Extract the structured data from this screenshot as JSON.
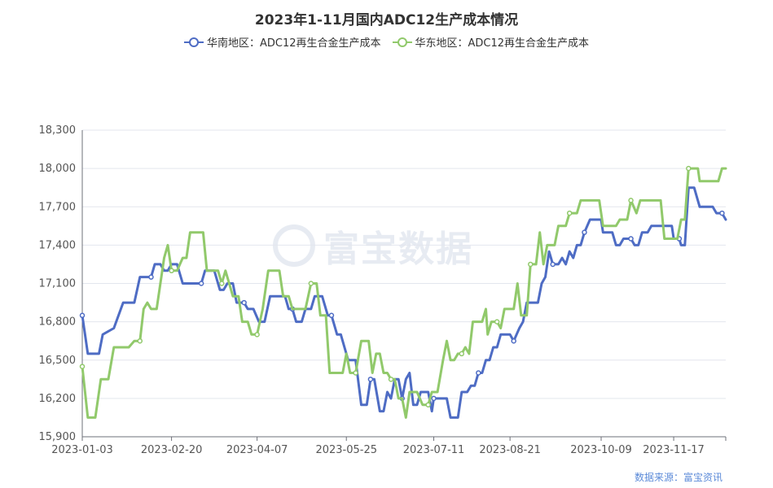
{
  "chart_data": {
    "type": "line",
    "title": "2023年1-11月国内ADC12生产成本情况",
    "x_tick_labels": [
      "2023-01-03",
      "2023-02-20",
      "2023-04-07",
      "2023-05-25",
      "2023-07-11",
      "2023-08-21",
      "2023-10-09",
      "2023-11-17"
    ],
    "ylim": [
      15900,
      18300
    ],
    "y_ticks": [
      15900,
      16200,
      16500,
      16800,
      17100,
      17400,
      17700,
      18000,
      18300
    ],
    "y_tick_labels": [
      "15,900",
      "16,200",
      "16,500",
      "16,800",
      "17,100",
      "17,400",
      "17,700",
      "18,000",
      "18,300"
    ],
    "grid": true,
    "legend_position": "top-center",
    "series": [
      {
        "name": "华南地区：ADC12再生合金生产成本",
        "color": "#4e6cc4",
        "points": [
          [
            "2023-01-03",
            16850
          ],
          [
            "2023-01-06",
            16550
          ],
          [
            "2023-01-12",
            16550
          ],
          [
            "2023-01-14",
            16700
          ],
          [
            "2023-01-20",
            16750
          ],
          [
            "2023-01-25",
            16950
          ],
          [
            "2023-01-31",
            16950
          ],
          [
            "2023-02-03",
            17150
          ],
          [
            "2023-02-09",
            17150
          ],
          [
            "2023-02-11",
            17250
          ],
          [
            "2023-02-14",
            17250
          ],
          [
            "2023-02-16",
            17200
          ],
          [
            "2023-02-18",
            17200
          ],
          [
            "2023-02-20",
            17250
          ],
          [
            "2023-02-23",
            17250
          ],
          [
            "2023-02-26",
            17100
          ],
          [
            "2023-03-08",
            17100
          ],
          [
            "2023-03-10",
            17200
          ],
          [
            "2023-03-15",
            17200
          ],
          [
            "2023-03-18",
            17050
          ],
          [
            "2023-03-20",
            17050
          ],
          [
            "2023-03-22",
            17100
          ],
          [
            "2023-03-25",
            17100
          ],
          [
            "2023-03-27",
            16950
          ],
          [
            "2023-03-31",
            16950
          ],
          [
            "2023-04-02",
            16900
          ],
          [
            "2023-04-05",
            16900
          ],
          [
            "2023-04-08",
            16800
          ],
          [
            "2023-04-11",
            16800
          ],
          [
            "2023-04-14",
            17000
          ],
          [
            "2023-04-22",
            17000
          ],
          [
            "2023-04-24",
            16900
          ],
          [
            "2023-04-26",
            16900
          ],
          [
            "2023-04-28",
            16800
          ],
          [
            "2023-05-01",
            16800
          ],
          [
            "2023-05-03",
            16900
          ],
          [
            "2023-05-06",
            16900
          ],
          [
            "2023-05-08",
            17000
          ],
          [
            "2023-05-12",
            17000
          ],
          [
            "2023-05-15",
            16850
          ],
          [
            "2023-05-17",
            16850
          ],
          [
            "2023-05-20",
            16700
          ],
          [
            "2023-05-22",
            16700
          ],
          [
            "2023-05-24",
            16600
          ],
          [
            "2023-05-26",
            16500
          ],
          [
            "2023-05-30",
            16500
          ],
          [
            "2023-06-02",
            16150
          ],
          [
            "2023-06-05",
            16150
          ],
          [
            "2023-06-07",
            16350
          ],
          [
            "2023-06-09",
            16350
          ],
          [
            "2023-06-12",
            16100
          ],
          [
            "2023-06-14",
            16100
          ],
          [
            "2023-06-16",
            16250
          ],
          [
            "2023-06-18",
            16200
          ],
          [
            "2023-06-20",
            16350
          ],
          [
            "2023-06-22",
            16350
          ],
          [
            "2023-06-24",
            16200
          ],
          [
            "2023-06-26",
            16350
          ],
          [
            "2023-06-28",
            16400
          ],
          [
            "2023-06-30",
            16150
          ],
          [
            "2023-07-02",
            16150
          ],
          [
            "2023-07-04",
            16250
          ],
          [
            "2023-07-08",
            16250
          ],
          [
            "2023-07-10",
            16100
          ],
          [
            "2023-07-11",
            16200
          ],
          [
            "2023-07-18",
            16200
          ],
          [
            "2023-07-20",
            16050
          ],
          [
            "2023-07-24",
            16050
          ],
          [
            "2023-07-26",
            16250
          ],
          [
            "2023-07-29",
            16250
          ],
          [
            "2023-07-31",
            16300
          ],
          [
            "2023-08-02",
            16300
          ],
          [
            "2023-08-04",
            16400
          ],
          [
            "2023-08-06",
            16400
          ],
          [
            "2023-08-08",
            16500
          ],
          [
            "2023-08-10",
            16500
          ],
          [
            "2023-08-12",
            16600
          ],
          [
            "2023-08-14",
            16600
          ],
          [
            "2023-08-16",
            16700
          ],
          [
            "2023-08-21",
            16700
          ],
          [
            "2023-08-23",
            16650
          ],
          [
            "2023-08-26",
            16750
          ],
          [
            "2023-08-28",
            16800
          ],
          [
            "2023-08-30",
            16950
          ],
          [
            "2023-09-05",
            16950
          ],
          [
            "2023-09-07",
            17100
          ],
          [
            "2023-09-09",
            17150
          ],
          [
            "2023-09-11",
            17350
          ],
          [
            "2023-09-13",
            17250
          ],
          [
            "2023-09-16",
            17250
          ],
          [
            "2023-09-18",
            17300
          ],
          [
            "2023-09-20",
            17250
          ],
          [
            "2023-09-22",
            17350
          ],
          [
            "2023-09-24",
            17300
          ],
          [
            "2023-09-26",
            17400
          ],
          [
            "2023-09-28",
            17400
          ],
          [
            "2023-09-30",
            17500
          ],
          [
            "2023-10-03",
            17600
          ],
          [
            "2023-10-09",
            17600
          ],
          [
            "2023-10-10",
            17500
          ],
          [
            "2023-10-15",
            17500
          ],
          [
            "2023-10-17",
            17400
          ],
          [
            "2023-10-19",
            17400
          ],
          [
            "2023-10-21",
            17450
          ],
          [
            "2023-10-25",
            17450
          ],
          [
            "2023-10-27",
            17400
          ],
          [
            "2023-10-29",
            17400
          ],
          [
            "2023-10-31",
            17500
          ],
          [
            "2023-11-03",
            17500
          ],
          [
            "2023-11-05",
            17550
          ],
          [
            "2023-11-16",
            17550
          ],
          [
            "2023-11-17",
            17450
          ],
          [
            "2023-11-20",
            17450
          ],
          [
            "2023-11-21",
            17400
          ],
          [
            "2023-11-23",
            17400
          ],
          [
            "2023-11-25",
            17850
          ],
          [
            "2023-11-28",
            17850
          ],
          [
            "2023-12-01",
            17700
          ],
          [
            "2023-12-08",
            17700
          ],
          [
            "2023-12-10",
            17650
          ],
          [
            "2023-12-13",
            17650
          ],
          [
            "2023-12-15",
            17600
          ]
        ]
      },
      {
        "name": "华东地区：ADC12再生合金生产成本",
        "color": "#91c96b",
        "points": [
          [
            "2023-01-03",
            16450
          ],
          [
            "2023-01-06",
            16050
          ],
          [
            "2023-01-10",
            16050
          ],
          [
            "2023-01-13",
            16350
          ],
          [
            "2023-01-17",
            16350
          ],
          [
            "2023-01-20",
            16600
          ],
          [
            "2023-01-28",
            16600
          ],
          [
            "2023-01-31",
            16650
          ],
          [
            "2023-02-03",
            16650
          ],
          [
            "2023-02-05",
            16900
          ],
          [
            "2023-02-07",
            16950
          ],
          [
            "2023-02-09",
            16900
          ],
          [
            "2023-02-12",
            16900
          ],
          [
            "2023-02-14",
            17100
          ],
          [
            "2023-02-16",
            17300
          ],
          [
            "2023-02-18",
            17400
          ],
          [
            "2023-02-20",
            17200
          ],
          [
            "2023-02-23",
            17200
          ],
          [
            "2023-02-26",
            17300
          ],
          [
            "2023-02-28",
            17300
          ],
          [
            "2023-03-02",
            17500
          ],
          [
            "2023-03-09",
            17500
          ],
          [
            "2023-03-11",
            17200
          ],
          [
            "2023-03-17",
            17200
          ],
          [
            "2023-03-19",
            17100
          ],
          [
            "2023-03-21",
            17200
          ],
          [
            "2023-03-23",
            17100
          ],
          [
            "2023-03-25",
            17000
          ],
          [
            "2023-03-28",
            17000
          ],
          [
            "2023-03-30",
            16800
          ],
          [
            "2023-04-02",
            16800
          ],
          [
            "2023-04-04",
            16700
          ],
          [
            "2023-04-07",
            16700
          ],
          [
            "2023-04-10",
            16900
          ],
          [
            "2023-04-13",
            17200
          ],
          [
            "2023-04-19",
            17200
          ],
          [
            "2023-04-21",
            17000
          ],
          [
            "2023-04-24",
            17000
          ],
          [
            "2023-04-26",
            16900
          ],
          [
            "2023-05-03",
            16900
          ],
          [
            "2023-05-06",
            17100
          ],
          [
            "2023-05-09",
            17100
          ],
          [
            "2023-05-11",
            16850
          ],
          [
            "2023-05-14",
            16850
          ],
          [
            "2023-05-16",
            16400
          ],
          [
            "2023-05-23",
            16400
          ],
          [
            "2023-05-25",
            16550
          ],
          [
            "2023-05-27",
            16400
          ],
          [
            "2023-05-30",
            16400
          ],
          [
            "2023-06-02",
            16650
          ],
          [
            "2023-06-06",
            16650
          ],
          [
            "2023-06-08",
            16400
          ],
          [
            "2023-06-10",
            16550
          ],
          [
            "2023-06-12",
            16550
          ],
          [
            "2023-06-14",
            16400
          ],
          [
            "2023-06-16",
            16400
          ],
          [
            "2023-06-18",
            16350
          ],
          [
            "2023-06-20",
            16350
          ],
          [
            "2023-06-22",
            16200
          ],
          [
            "2023-06-24",
            16200
          ],
          [
            "2023-06-26",
            16050
          ],
          [
            "2023-06-28",
            16250
          ],
          [
            "2023-07-02",
            16250
          ],
          [
            "2023-07-05",
            16150
          ],
          [
            "2023-07-08",
            16150
          ],
          [
            "2023-07-10",
            16250
          ],
          [
            "2023-07-13",
            16250
          ],
          [
            "2023-07-16",
            16500
          ],
          [
            "2023-07-18",
            16650
          ],
          [
            "2023-07-20",
            16500
          ],
          [
            "2023-07-22",
            16500
          ],
          [
            "2023-07-24",
            16550
          ],
          [
            "2023-07-26",
            16550
          ],
          [
            "2023-07-28",
            16600
          ],
          [
            "2023-07-30",
            16550
          ],
          [
            "2023-08-01",
            16800
          ],
          [
            "2023-08-06",
            16800
          ],
          [
            "2023-08-08",
            16900
          ],
          [
            "2023-08-09",
            16700
          ],
          [
            "2023-08-11",
            16800
          ],
          [
            "2023-08-14",
            16800
          ],
          [
            "2023-08-16",
            16750
          ],
          [
            "2023-08-18",
            16900
          ],
          [
            "2023-08-21",
            16900
          ],
          [
            "2023-08-23",
            16900
          ],
          [
            "2023-08-25",
            17100
          ],
          [
            "2023-08-27",
            16850
          ],
          [
            "2023-08-30",
            16850
          ],
          [
            "2023-09-01",
            17250
          ],
          [
            "2023-09-04",
            17250
          ],
          [
            "2023-09-06",
            17500
          ],
          [
            "2023-09-08",
            17250
          ],
          [
            "2023-09-10",
            17400
          ],
          [
            "2023-09-14",
            17400
          ],
          [
            "2023-09-16",
            17550
          ],
          [
            "2023-09-20",
            17550
          ],
          [
            "2023-09-22",
            17650
          ],
          [
            "2023-09-26",
            17650
          ],
          [
            "2023-09-28",
            17750
          ],
          [
            "2023-10-08",
            17750
          ],
          [
            "2023-10-10",
            17550
          ],
          [
            "2023-10-17",
            17550
          ],
          [
            "2023-10-19",
            17600
          ],
          [
            "2023-10-23",
            17600
          ],
          [
            "2023-10-25",
            17750
          ],
          [
            "2023-10-28",
            17650
          ],
          [
            "2023-10-30",
            17750
          ],
          [
            "2023-11-10",
            17750
          ],
          [
            "2023-11-12",
            17450
          ],
          [
            "2023-11-19",
            17450
          ],
          [
            "2023-11-21",
            17600
          ],
          [
            "2023-11-23",
            17600
          ],
          [
            "2023-11-25",
            18000
          ],
          [
            "2023-11-30",
            18000
          ],
          [
            "2023-12-01",
            17900
          ],
          [
            "2023-12-11",
            17900
          ],
          [
            "2023-12-13",
            18000
          ],
          [
            "2023-12-15",
            18000
          ]
        ]
      }
    ]
  },
  "watermark": {
    "text": "富宝数据"
  },
  "source": {
    "text": "数据来源：富宝资讯"
  }
}
